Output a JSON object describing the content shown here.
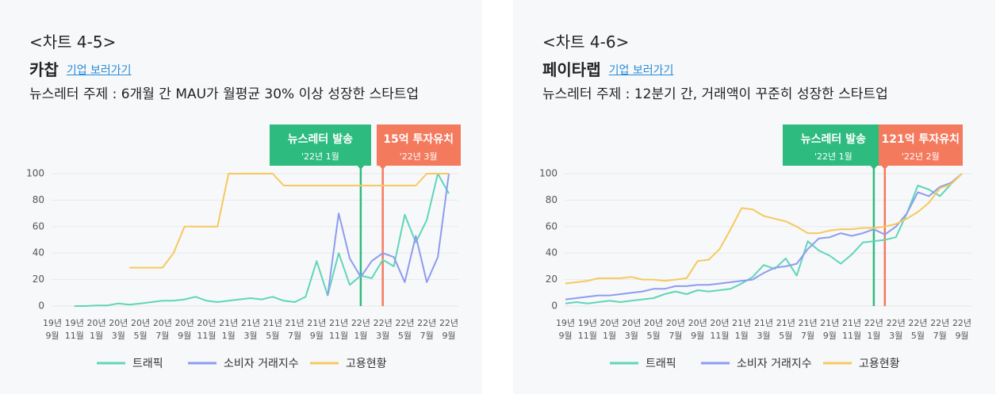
{
  "chart_data": [
    {
      "type": "line",
      "title": "<차트 4-5>",
      "company": "카찹",
      "link": "기업 보러가기",
      "subtitle": "뉴스레터 주제 : 6개월 간 MAU가 월평균 30% 이상 성장한 스타트업",
      "categories": [
        "19년 9월",
        null,
        "19년 11월",
        null,
        "20년 1월",
        null,
        "20년 3월",
        null,
        "20년 5월",
        null,
        "20년 7월",
        null,
        "20년 9월",
        null,
        "20년 11월",
        null,
        "21년 1월",
        null,
        "21년 3월",
        null,
        "21년 5월",
        null,
        "21년 7월",
        null,
        "21년 9월",
        null,
        "21년 11월",
        null,
        "22년 1월",
        null,
        "22년 3월",
        null,
        "22년 5월",
        null,
        "22년 7월",
        null,
        "22년 9월"
      ],
      "series": [
        {
          "name": "트래픽",
          "color": "#5fd6b8",
          "values": [
            null,
            null,
            0,
            0,
            0.5,
            0.5,
            2,
            1,
            2,
            3,
            4,
            4,
            5,
            7,
            4,
            3,
            4,
            5,
            6,
            5,
            7,
            4,
            3,
            7,
            34,
            8,
            40,
            16,
            23,
            21,
            35,
            30,
            69,
            48,
            65,
            100,
            85
          ]
        },
        {
          "name": "소비자 거래지수",
          "color": "#8d9cf0",
          "values": [
            null,
            null,
            null,
            null,
            null,
            null,
            null,
            null,
            null,
            null,
            null,
            null,
            null,
            null,
            null,
            null,
            null,
            null,
            null,
            null,
            null,
            null,
            null,
            null,
            null,
            8,
            70,
            36,
            22,
            34,
            40,
            37,
            18,
            53,
            18,
            37,
            100
          ]
        },
        {
          "name": "고용현황",
          "color": "#f7c85e",
          "values": [
            null,
            null,
            null,
            null,
            null,
            null,
            null,
            29,
            29,
            29,
            29,
            40,
            60,
            60,
            60,
            60,
            100,
            100,
            100,
            100,
            100,
            91,
            91,
            91,
            91,
            91,
            91,
            91,
            91,
            91,
            91,
            91,
            91,
            91,
            100,
            100,
            100
          ]
        }
      ],
      "annotations": [
        {
          "label": "뉴스레터 발송",
          "date": "'22년 1월",
          "x": 28,
          "color": "#2dbb7f"
        },
        {
          "label": "15억 투자유치",
          "date": "'22년 3월",
          "x": 30,
          "color": "#f47a5e"
        }
      ],
      "ylim": [
        0,
        100
      ],
      "yticks": [
        0,
        20,
        40,
        60,
        80,
        100
      ],
      "grid": true
    },
    {
      "type": "line",
      "title": "<차트 4-6>",
      "company": "페이타랩",
      "link": "기업 보러가기",
      "subtitle": "뉴스레터 주제 : 12분기 간, 거래액이 꾸준히 성장한 스타트업",
      "categories": [
        "19년 9월",
        null,
        "19년 11월",
        null,
        "20년 1월",
        null,
        "20년 3월",
        null,
        "20년 5월",
        null,
        "20년 7월",
        null,
        "20년 9월",
        null,
        "20년 11월",
        null,
        "21년 1월",
        null,
        "21년 3월",
        null,
        "21년 5월",
        null,
        "21년 7월",
        null,
        "21년 9월",
        null,
        "21년 11월",
        null,
        "22년 1월",
        null,
        "22년 3월",
        null,
        "22년 5월",
        null,
        "22년 7월",
        null,
        "22년 9월"
      ],
      "series": [
        {
          "name": "트래픽",
          "color": "#5fd6b8",
          "values": [
            2,
            3,
            2,
            3,
            4,
            3,
            4,
            5,
            6,
            9,
            11,
            9,
            12,
            11,
            12,
            13,
            17,
            22,
            31,
            28,
            36,
            23,
            49,
            42,
            38,
            32,
            39,
            48,
            49,
            50,
            52,
            70,
            91,
            88,
            83,
            92,
            100
          ]
        },
        {
          "name": "소비자 거래지수",
          "color": "#8d9cf0",
          "values": [
            5,
            6,
            7,
            8,
            8,
            9,
            10,
            11,
            13,
            13,
            15,
            15,
            16,
            16,
            17,
            18,
            19,
            20,
            25,
            29,
            30,
            32,
            43,
            51,
            52,
            55,
            53,
            55,
            58,
            54,
            60,
            70,
            86,
            83,
            90,
            93,
            100
          ]
        },
        {
          "name": "고용현황",
          "color": "#f7c85e",
          "values": [
            17,
            18,
            19,
            21,
            21,
            21,
            22,
            20,
            20,
            19,
            20,
            21,
            34,
            35,
            43,
            58,
            74,
            73,
            68,
            66,
            64,
            60,
            55,
            55,
            57,
            58,
            58,
            59,
            59,
            60,
            62,
            66,
            71,
            78,
            89,
            92,
            100
          ]
        }
      ],
      "annotations": [
        {
          "label": "뉴스레터 발송",
          "date": "'22년 1월",
          "x": 28,
          "color": "#2dbb7f"
        },
        {
          "label": "121억 투자유치",
          "date": "'22년 2월",
          "x": 29,
          "color": "#f47a5e"
        }
      ],
      "ylim": [
        0,
        100
      ],
      "yticks": [
        0,
        20,
        40,
        60,
        80,
        100
      ],
      "grid": true
    }
  ]
}
